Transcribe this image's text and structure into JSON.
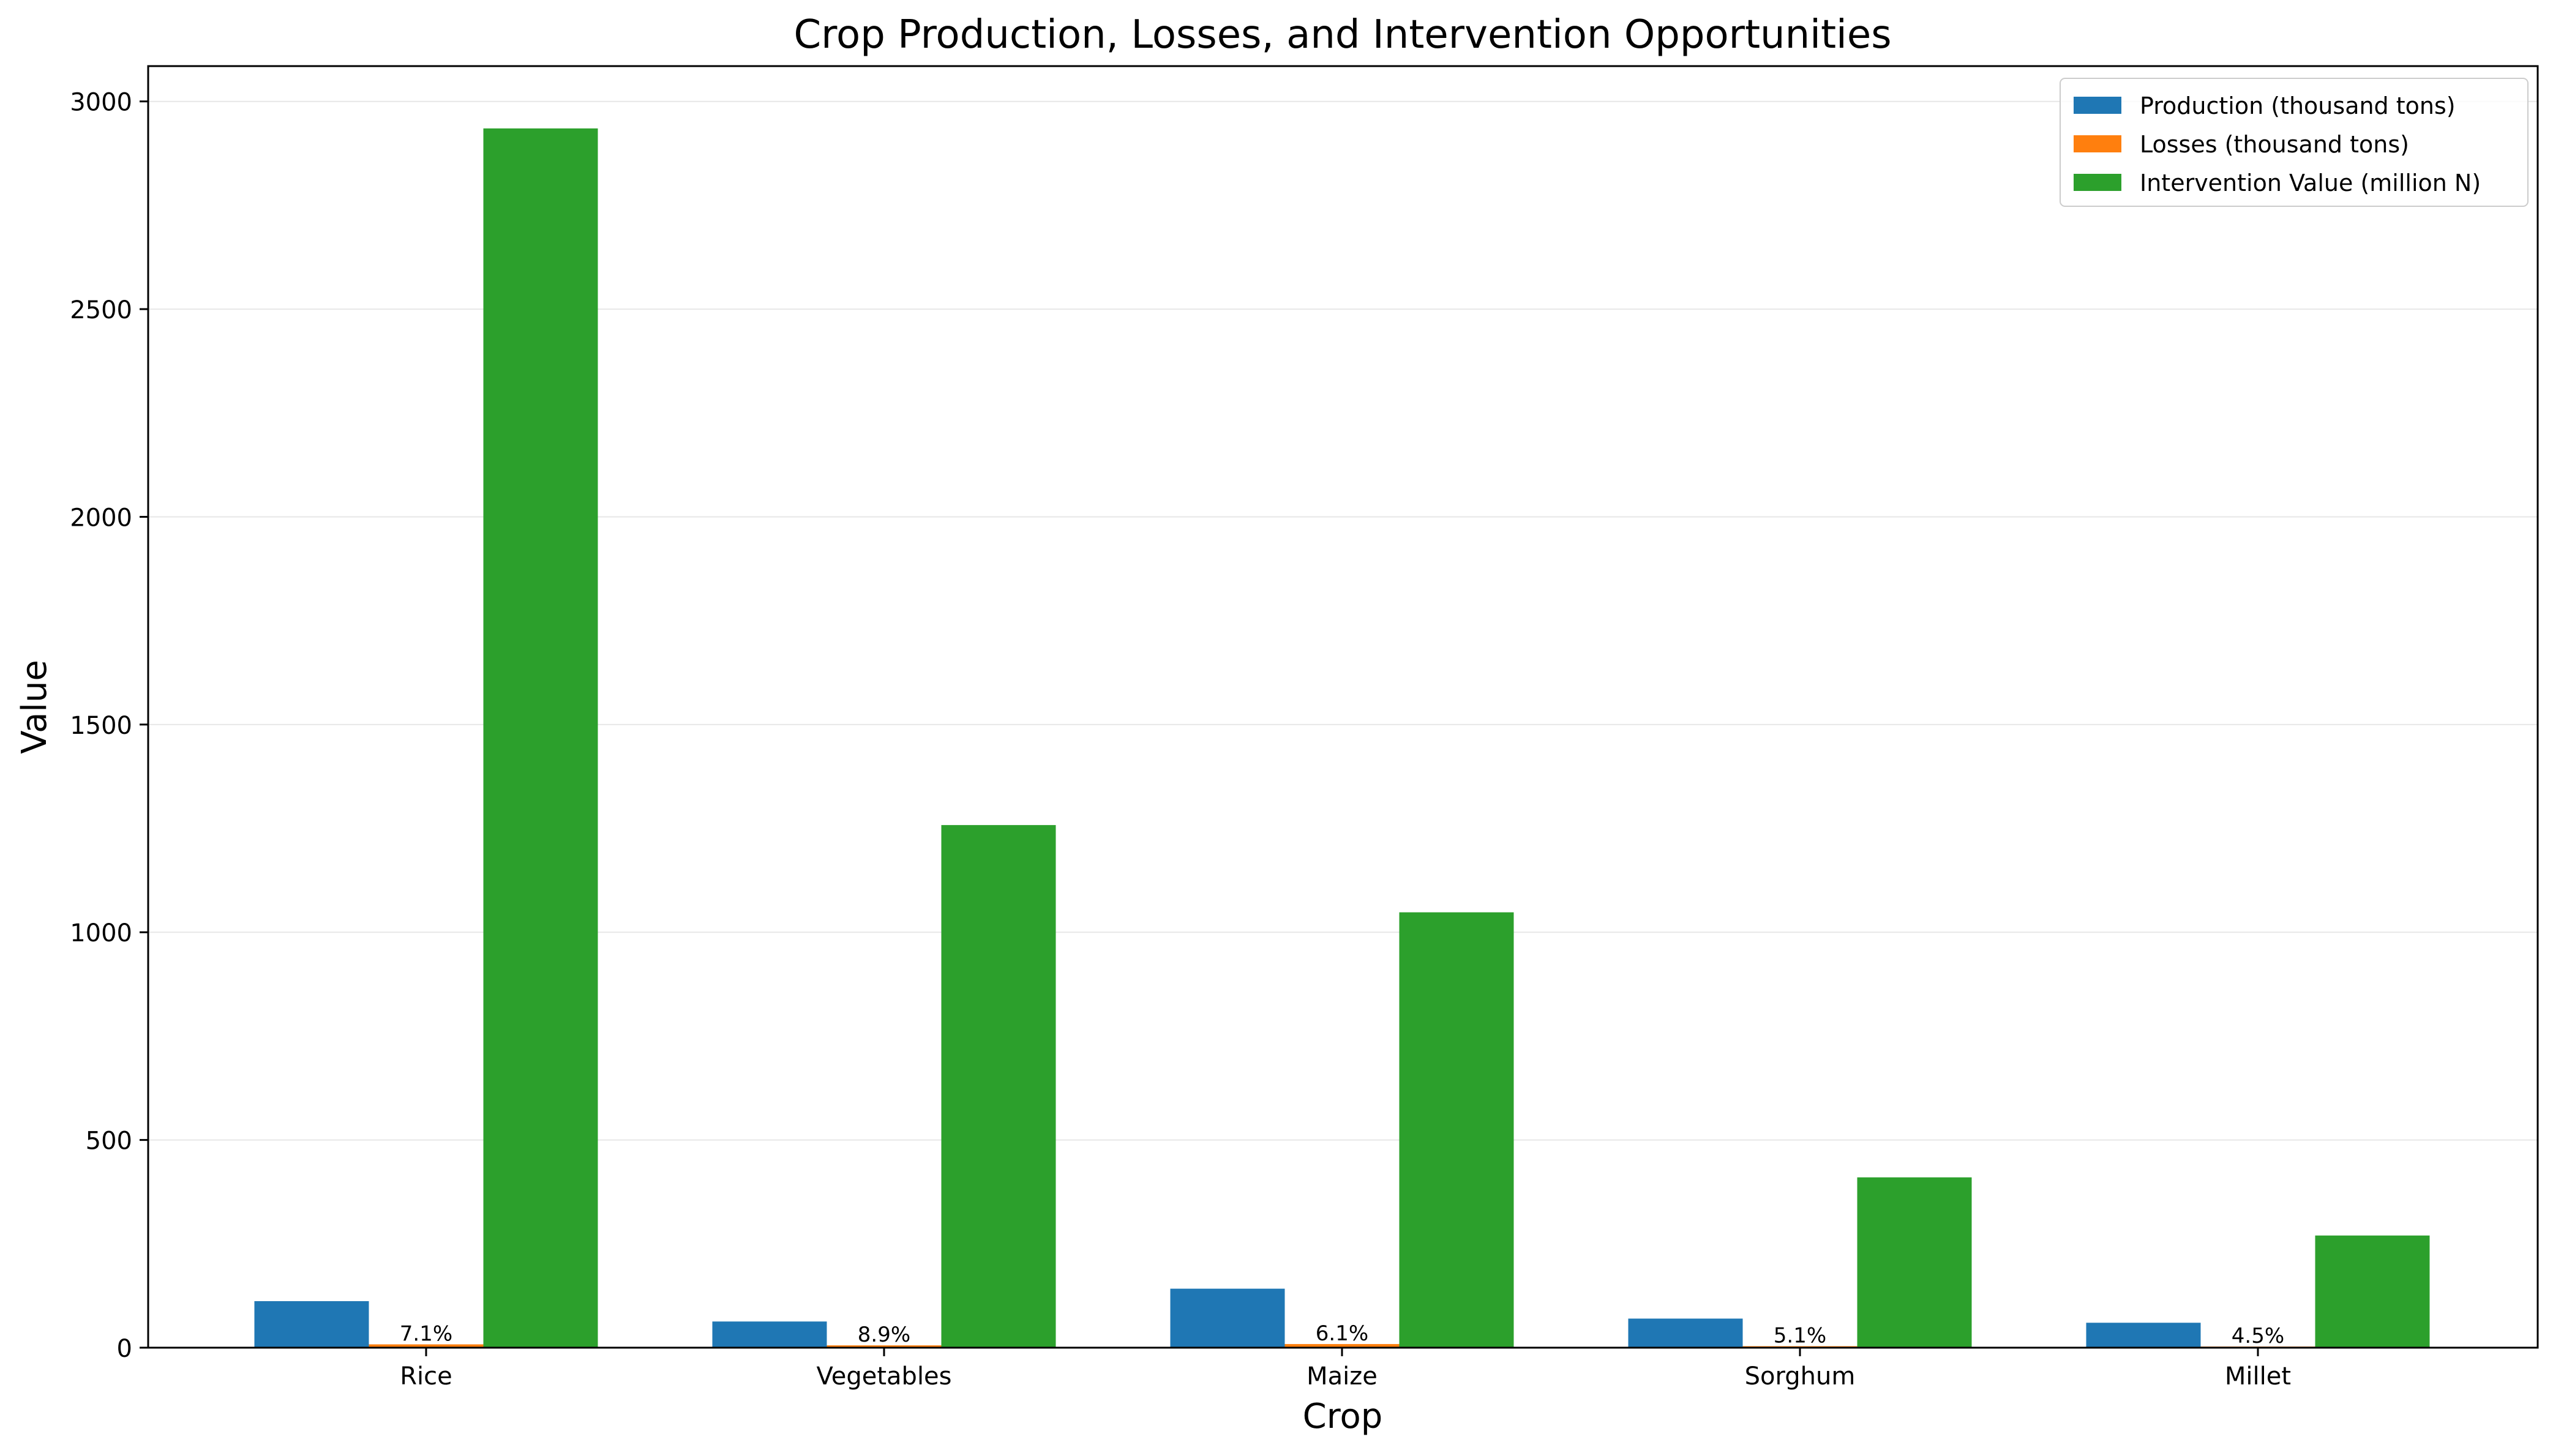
{
  "chart_data": {
    "type": "bar",
    "title": "Crop Production, Losses, and Intervention Opportunities",
    "xlabel": "Crop",
    "ylabel": "Value",
    "categories": [
      "Rice",
      "Vegetables",
      "Maize",
      "Sorghum",
      "Millet"
    ],
    "series": [
      {
        "name": "Production (thousand tons)",
        "color": "#1f77b4",
        "values": [
          112,
          63,
          142,
          70,
          60
        ]
      },
      {
        "name": "Losses (thousand tons)",
        "color": "#ff7f0e",
        "values": [
          8,
          5.6,
          8.7,
          3.6,
          2.7
        ]
      },
      {
        "name": "Intervention Value (million N)",
        "color": "#2ca02c",
        "values": [
          2935,
          1258,
          1048,
          410,
          270
        ]
      }
    ],
    "loss_percent_labels": [
      "7.1%",
      "8.9%",
      "6.1%",
      "5.1%",
      "4.5%"
    ],
    "ylim": [
      0,
      3085
    ],
    "yticks": [
      0,
      500,
      1000,
      1500,
      2000,
      2500,
      3000
    ],
    "grid": "horizontal",
    "legend_position": "top-right"
  }
}
